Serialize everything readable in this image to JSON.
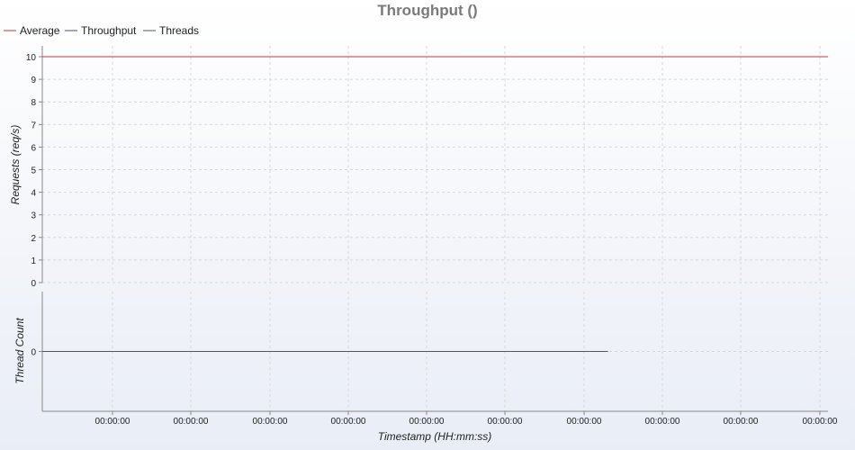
{
  "chart_data": {
    "type": "line",
    "title": "Throughput ()",
    "legend": {
      "placement": "top-left",
      "entries": [
        {
          "name": "Average",
          "color": "#cc3333"
        },
        {
          "name": "Throughput",
          "color": "#4a4a7a"
        },
        {
          "name": "Threads",
          "color": "#555555"
        }
      ]
    },
    "xlabel": "Timestamp (HH:mm:ss)",
    "x_ticks": [
      "00:00:00",
      "00:00:00",
      "00:00:00",
      "00:00:00",
      "00:00:00",
      "00:00:00",
      "00:00:00",
      "00:00:00",
      "00:00:00",
      "00:00:00"
    ],
    "x_range": [
      0,
      10
    ],
    "panels": [
      {
        "ylabel": "Requests (req/s)",
        "ylim": [
          0,
          10
        ],
        "y_ticks": [
          "0",
          "1",
          "2",
          "3",
          "4",
          "5",
          "6",
          "7",
          "8",
          "9",
          "10"
        ],
        "grid": true,
        "series": [
          {
            "name": "Average",
            "color": "#cc3333",
            "x": [
              0,
              10
            ],
            "y": [
              10,
              10
            ]
          }
        ]
      },
      {
        "ylabel": "Thread Count",
        "ylim": [
          -1,
          1
        ],
        "y_ticks": [
          "0"
        ],
        "grid": true,
        "series": [
          {
            "name": "Threads",
            "color": "#555555",
            "x": [
              0,
              7.2
            ],
            "y": [
              0,
              0
            ]
          }
        ]
      }
    ]
  }
}
